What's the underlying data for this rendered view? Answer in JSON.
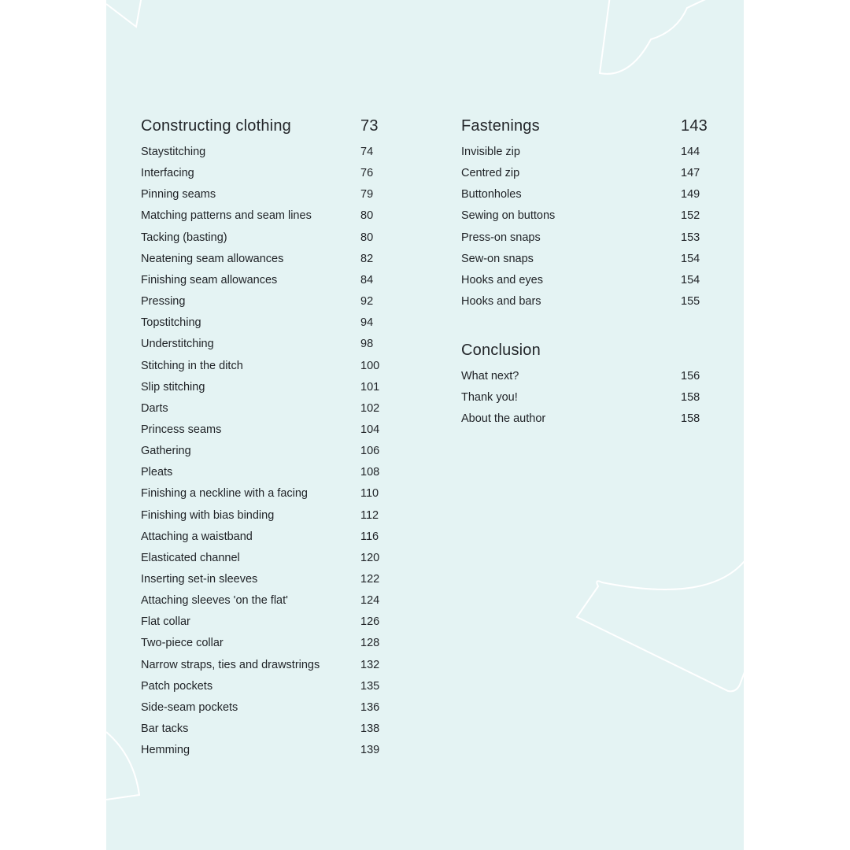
{
  "background_color": "#e4f3f3",
  "sections": [
    {
      "title": "Constructing clothing",
      "page": "73",
      "items": [
        {
          "title": "Staystitching",
          "page": "74"
        },
        {
          "title": "Interfacing",
          "page": "76"
        },
        {
          "title": "Pinning seams",
          "page": "79"
        },
        {
          "title": "Matching patterns and seam lines",
          "page": "80"
        },
        {
          "title": "Tacking (basting)",
          "page": "80"
        },
        {
          "title": "Neatening seam allowances",
          "page": "82"
        },
        {
          "title": "Finishing seam allowances",
          "page": "84"
        },
        {
          "title": "Pressing",
          "page": "92"
        },
        {
          "title": "Topstitching",
          "page": "94"
        },
        {
          "title": "Understitching",
          "page": "98"
        },
        {
          "title": "Stitching in the ditch",
          "page": "100"
        },
        {
          "title": "Slip stitching",
          "page": "101"
        },
        {
          "title": "Darts",
          "page": "102"
        },
        {
          "title": "Princess seams",
          "page": "104"
        },
        {
          "title": "Gathering",
          "page": "106"
        },
        {
          "title": "Pleats",
          "page": "108"
        },
        {
          "title": "Finishing a neckline with a facing",
          "page": "110"
        },
        {
          "title": "Finishing with bias binding",
          "page": "112"
        },
        {
          "title": "Attaching a waistband",
          "page": "116"
        },
        {
          "title": "Elasticated channel",
          "page": "120"
        },
        {
          "title": "Inserting set-in sleeves",
          "page": "122"
        },
        {
          "title": "Attaching sleeves 'on the flat'",
          "page": "124"
        },
        {
          "title": "Flat collar",
          "page": "126"
        },
        {
          "title": "Two-piece collar",
          "page": "128"
        },
        {
          "title": "Narrow straps, ties and drawstrings",
          "page": "132"
        },
        {
          "title": "Patch pockets",
          "page": "135"
        },
        {
          "title": "Side-seam pockets",
          "page": "136"
        },
        {
          "title": "Bar tacks",
          "page": "138"
        },
        {
          "title": "Hemming",
          "page": "139"
        }
      ]
    },
    {
      "title": "Fastenings",
      "page": "143",
      "items": [
        {
          "title": "Invisible zip",
          "page": "144"
        },
        {
          "title": "Centred zip",
          "page": "147"
        },
        {
          "title": "Buttonholes",
          "page": "149"
        },
        {
          "title": "Sewing on buttons",
          "page": "152"
        },
        {
          "title": "Press-on snaps",
          "page": "153"
        },
        {
          "title": "Sew-on snaps",
          "page": "154"
        },
        {
          "title": "Hooks and eyes",
          "page": "154"
        },
        {
          "title": "Hooks and bars",
          "page": "155"
        }
      ]
    },
    {
      "title": "Conclusion",
      "page": "",
      "items": [
        {
          "title": "What next?",
          "page": "156"
        },
        {
          "title": "Thank you!",
          "page": "158"
        },
        {
          "title": "About the author",
          "page": "158"
        }
      ]
    }
  ]
}
